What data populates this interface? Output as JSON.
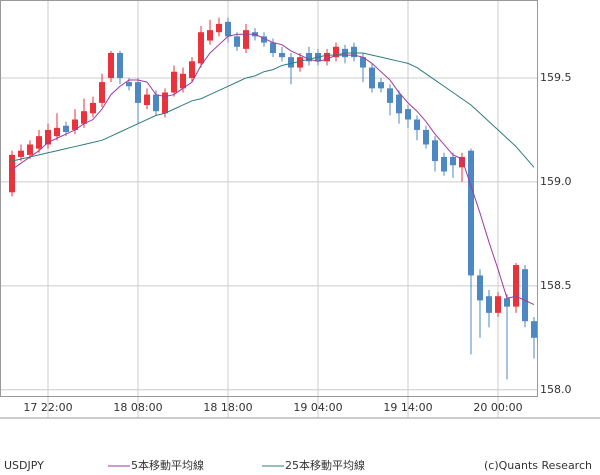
{
  "chart_data": {
    "type": "candlestick",
    "symbol": "USDJPY",
    "credit": "(c)Quants Research",
    "categories": [
      null,
      null,
      null,
      null,
      "17 22:00",
      null,
      null,
      null,
      null,
      null,
      null,
      null,
      null,
      null,
      "18 08:00",
      null,
      null,
      null,
      null,
      null,
      null,
      null,
      null,
      null,
      "18 18:00",
      null,
      null,
      null,
      null,
      null,
      null,
      null,
      null,
      null,
      "19 04:00",
      null,
      null,
      null,
      null,
      null,
      null,
      null,
      null,
      null,
      "19 14:00",
      null,
      null,
      null,
      null,
      null,
      null,
      null,
      null,
      null,
      "20 00:00",
      null,
      null,
      null,
      null
    ],
    "open": [
      158.95,
      159.12,
      159.13,
      159.16,
      159.18,
      159.22,
      159.27,
      159.25,
      159.28,
      159.33,
      159.38,
      159.5,
      159.62,
      159.48,
      159.48,
      159.37,
      159.42,
      159.33,
      159.43,
      159.45,
      159.5,
      159.57,
      159.68,
      159.72,
      159.77,
      159.7,
      159.64,
      159.72,
      159.7,
      159.67,
      159.62,
      159.6,
      159.55,
      159.62,
      159.62,
      159.58,
      159.6,
      159.64,
      159.65,
      159.6,
      159.55,
      159.48,
      159.45,
      159.42,
      159.35,
      159.3,
      159.25,
      159.2,
      159.12,
      159.12,
      159.07,
      159.15,
      158.55,
      158.45,
      158.37,
      158.44,
      158.4,
      158.58,
      158.33
    ],
    "high": [
      159.15,
      159.18,
      159.2,
      159.25,
      159.28,
      159.33,
      159.29,
      159.35,
      159.4,
      159.41,
      159.52,
      159.63,
      159.63,
      159.5,
      159.5,
      159.45,
      159.44,
      159.45,
      159.56,
      159.55,
      159.6,
      159.75,
      159.78,
      159.79,
      159.79,
      159.72,
      159.76,
      159.74,
      159.72,
      159.69,
      159.65,
      159.62,
      159.62,
      159.65,
      159.64,
      159.64,
      159.67,
      159.66,
      159.67,
      159.62,
      159.57,
      159.5,
      159.47,
      159.44,
      159.37,
      159.32,
      159.27,
      159.22,
      159.14,
      159.14,
      159.14,
      159.16,
      158.58,
      158.48,
      158.47,
      158.46,
      158.61,
      158.6,
      158.35
    ],
    "low": [
      158.93,
      159.1,
      159.11,
      159.14,
      159.16,
      159.2,
      159.22,
      159.23,
      159.26,
      159.31,
      159.36,
      159.48,
      159.47,
      159.44,
      159.28,
      159.35,
      159.32,
      159.31,
      159.41,
      159.43,
      159.48,
      159.55,
      159.66,
      159.7,
      159.67,
      159.63,
      159.62,
      159.68,
      159.65,
      159.6,
      159.58,
      159.47,
      159.53,
      159.56,
      159.56,
      159.56,
      159.58,
      159.57,
      159.58,
      159.48,
      159.43,
      159.43,
      159.32,
      159.28,
      159.26,
      159.2,
      159.16,
      159.05,
      159.03,
      159.02,
      159.0,
      158.17,
      158.25,
      158.3,
      158.35,
      158.05,
      158.37,
      158.3,
      158.15
    ],
    "close": [
      159.13,
      159.15,
      159.18,
      159.22,
      159.25,
      159.26,
      159.24,
      159.3,
      159.34,
      159.38,
      159.48,
      159.62,
      159.5,
      159.46,
      159.38,
      159.42,
      159.34,
      159.43,
      159.53,
      159.52,
      159.58,
      159.72,
      159.73,
      159.76,
      159.7,
      159.65,
      159.73,
      159.7,
      159.67,
      159.62,
      159.6,
      159.55,
      159.6,
      159.58,
      159.58,
      159.62,
      159.65,
      159.6,
      159.6,
      159.55,
      159.45,
      159.45,
      159.38,
      159.33,
      159.3,
      159.25,
      159.18,
      159.1,
      159.05,
      159.08,
      159.12,
      158.55,
      158.43,
      158.37,
      158.45,
      158.4,
      158.6,
      158.33,
      158.25
    ],
    "up_color": "#e8323c",
    "down_color": "#4d88c2",
    "moving_averages": [
      {
        "name": "5本移動平均線",
        "color": "#a03aa0",
        "values": [
          159.06,
          159.09,
          159.12,
          159.15,
          159.19,
          159.21,
          159.23,
          159.25,
          159.28,
          159.3,
          159.35,
          159.42,
          159.46,
          159.49,
          159.49,
          159.48,
          159.42,
          159.41,
          159.42,
          159.45,
          159.48,
          159.56,
          159.62,
          159.66,
          159.7,
          159.71,
          159.71,
          159.71,
          159.69,
          159.67,
          159.66,
          159.63,
          159.61,
          159.59,
          159.58,
          159.59,
          159.61,
          159.61,
          159.61,
          159.6,
          159.57,
          159.53,
          159.49,
          159.43,
          159.38,
          159.34,
          159.29,
          159.23,
          159.18,
          159.13,
          159.11,
          158.98,
          158.85,
          158.71,
          158.58,
          158.44,
          158.45,
          158.43,
          158.41
        ]
      },
      {
        "name": "25本移動平均線",
        "color": "#2f7d7a",
        "values": [
          159.1,
          159.11,
          159.12,
          159.13,
          159.14,
          159.15,
          159.16,
          159.17,
          159.18,
          159.19,
          159.2,
          159.22,
          159.24,
          159.26,
          159.28,
          159.3,
          159.32,
          159.33,
          159.35,
          159.37,
          159.39,
          159.4,
          159.42,
          159.44,
          159.46,
          159.48,
          159.5,
          159.51,
          159.53,
          159.54,
          159.56,
          159.57,
          159.58,
          159.59,
          159.6,
          159.61,
          159.61,
          159.62,
          159.62,
          159.62,
          159.61,
          159.6,
          159.59,
          159.58,
          159.57,
          159.55,
          159.52,
          159.49,
          159.46,
          159.43,
          159.4,
          159.37,
          159.33,
          159.29,
          159.25,
          159.21,
          159.17,
          159.12,
          159.07
        ]
      }
    ],
    "ylim": [
      157.97,
      159.875
    ],
    "yticks": [
      {
        "value": 158,
        "label": "158.0"
      },
      158.5,
      {
        "value": 159,
        "label": "159.0"
      },
      159.5
    ],
    "grid": true
  }
}
